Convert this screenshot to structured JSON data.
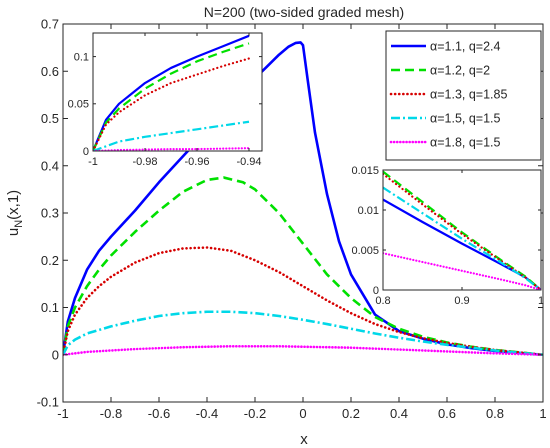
{
  "chart_data": {
    "main": {
      "type": "line",
      "title": "N=200 (two-sided graded mesh)",
      "xlabel": "x",
      "ylabel_main": "u",
      "ylabel_sub": "N",
      "ylabel_tail": "(x,1)",
      "xlim": [
        -1,
        1
      ],
      "ylim": [
        -0.1,
        0.7
      ],
      "xticks": [
        -1,
        -0.8,
        -0.6,
        -0.4,
        -0.2,
        0,
        0.2,
        0.4,
        0.6,
        0.8,
        1
      ],
      "xtick_labels": [
        "-1",
        "-0.8",
        "-0.6",
        "-0.4",
        "-0.2",
        "0",
        "0.2",
        "0.4",
        "0.6",
        "0.8",
        "1"
      ],
      "yticks": [
        -0.1,
        0,
        0.1,
        0.2,
        0.3,
        0.4,
        0.5,
        0.6,
        0.7
      ],
      "ytick_labels": [
        "-0.1",
        "0",
        "0.1",
        "0.2",
        "0.3",
        "0.4",
        "0.5",
        "0.6",
        "0.7"
      ],
      "series": [
        {
          "name": "α=1.1, q=2.4",
          "color": "#0000ff",
          "style": "solid",
          "x": [
            -1,
            -0.98,
            -0.95,
            -0.9,
            -0.85,
            -0.8,
            -0.7,
            -0.6,
            -0.5,
            -0.4,
            -0.3,
            -0.2,
            -0.15,
            -0.1,
            -0.06,
            -0.03,
            -0.01,
            0.0,
            0.02,
            0.05,
            0.1,
            0.15,
            0.2,
            0.3,
            0.4,
            0.5,
            0.6,
            0.7,
            0.8,
            0.9,
            1.0
          ],
          "y": [
            0,
            0.07,
            0.12,
            0.18,
            0.22,
            0.25,
            0.305,
            0.365,
            0.42,
            0.475,
            0.53,
            0.585,
            0.61,
            0.635,
            0.652,
            0.66,
            0.661,
            0.655,
            0.58,
            0.47,
            0.34,
            0.24,
            0.17,
            0.085,
            0.05,
            0.034,
            0.022,
            0.014,
            0.008,
            0.004,
            0
          ]
        },
        {
          "name": "α=1.2, q=2",
          "color": "#00e000",
          "style": "dashed",
          "x": [
            -1,
            -0.98,
            -0.95,
            -0.9,
            -0.85,
            -0.8,
            -0.7,
            -0.6,
            -0.5,
            -0.4,
            -0.33,
            -0.25,
            -0.2,
            -0.1,
            0.0,
            0.1,
            0.2,
            0.3,
            0.4,
            0.5,
            0.6,
            0.7,
            0.8,
            0.9,
            1.0
          ],
          "y": [
            0,
            0.06,
            0.1,
            0.145,
            0.18,
            0.21,
            0.26,
            0.305,
            0.345,
            0.37,
            0.375,
            0.365,
            0.35,
            0.3,
            0.235,
            0.17,
            0.12,
            0.08,
            0.055,
            0.038,
            0.026,
            0.017,
            0.01,
            0.005,
            0
          ]
        },
        {
          "name": "α=1.3, q=1.85",
          "color": "#d60000",
          "style": "dotted",
          "x": [
            -1,
            -0.98,
            -0.95,
            -0.9,
            -0.85,
            -0.8,
            -0.7,
            -0.6,
            -0.5,
            -0.4,
            -0.3,
            -0.2,
            -0.1,
            0.0,
            0.1,
            0.2,
            0.3,
            0.4,
            0.5,
            0.6,
            0.7,
            0.8,
            0.9,
            1.0
          ],
          "y": [
            0,
            0.05,
            0.085,
            0.12,
            0.145,
            0.165,
            0.195,
            0.215,
            0.225,
            0.227,
            0.22,
            0.2,
            0.175,
            0.145,
            0.115,
            0.088,
            0.065,
            0.048,
            0.035,
            0.025,
            0.017,
            0.01,
            0.005,
            0
          ]
        },
        {
          "name": "α=1.5, q=1.5",
          "color": "#00d8e8",
          "style": "dashdot",
          "x": [
            -1,
            -0.98,
            -0.95,
            -0.9,
            -0.8,
            -0.7,
            -0.6,
            -0.5,
            -0.4,
            -0.3,
            -0.2,
            -0.1,
            0.0,
            0.1,
            0.2,
            0.3,
            0.4,
            0.5,
            0.6,
            0.7,
            0.8,
            0.9,
            1.0
          ],
          "y": [
            0,
            0.02,
            0.032,
            0.045,
            0.06,
            0.072,
            0.082,
            0.088,
            0.091,
            0.091,
            0.088,
            0.082,
            0.074,
            0.065,
            0.055,
            0.045,
            0.036,
            0.028,
            0.021,
            0.015,
            0.009,
            0.004,
            0
          ]
        },
        {
          "name": "α=1.8, q=1.5",
          "color": "#ff00ff",
          "style": "points",
          "x": [
            -1,
            -0.9,
            -0.8,
            -0.7,
            -0.6,
            -0.5,
            -0.4,
            -0.3,
            -0.2,
            -0.1,
            0.0,
            0.1,
            0.2,
            0.3,
            0.4,
            0.5,
            0.6,
            0.7,
            0.8,
            0.9,
            1.0
          ],
          "y": [
            0,
            0.006,
            0.009,
            0.012,
            0.014,
            0.016,
            0.017,
            0.018,
            0.018,
            0.018,
            0.017,
            0.016,
            0.015,
            0.013,
            0.011,
            0.009,
            0.007,
            0.005,
            0.003,
            0.0015,
            0
          ]
        }
      ],
      "legend_position": "top-right"
    },
    "inset_left": {
      "type": "line",
      "xlim": [
        -1,
        -0.935
      ],
      "ylim": [
        0,
        0.125
      ],
      "xticks": [
        -1,
        -0.98,
        -0.96,
        -0.94
      ],
      "xtick_labels": [
        "-1",
        "-0.98",
        "-0.96",
        "-0.94"
      ],
      "yticks": [
        0,
        0.05,
        0.1
      ],
      "ytick_labels": [
        "0",
        "0.05",
        "0.1"
      ],
      "series": [
        {
          "color": "#0000ff",
          "style": "solid",
          "x": [
            -1,
            -0.995,
            -0.99,
            -0.98,
            -0.97,
            -0.96,
            -0.95,
            -0.94
          ],
          "y": [
            0,
            0.033,
            0.05,
            0.072,
            0.088,
            0.1,
            0.111,
            0.122
          ]
        },
        {
          "color": "#00e000",
          "style": "dashed",
          "x": [
            -1,
            -0.995,
            -0.99,
            -0.98,
            -0.97,
            -0.96,
            -0.95,
            -0.94
          ],
          "y": [
            0,
            0.03,
            0.045,
            0.066,
            0.082,
            0.095,
            0.105,
            0.114
          ]
        },
        {
          "color": "#d60000",
          "style": "dotted",
          "x": [
            -1,
            -0.995,
            -0.99,
            -0.98,
            -0.97,
            -0.96,
            -0.95,
            -0.94
          ],
          "y": [
            0,
            0.028,
            0.041,
            0.059,
            0.072,
            0.081,
            0.09,
            0.098
          ]
        },
        {
          "color": "#00d8e8",
          "style": "dashdot",
          "x": [
            -1,
            -0.99,
            -0.98,
            -0.97,
            -0.96,
            -0.95,
            -0.94
          ],
          "y": [
            0,
            0.01,
            0.015,
            0.019,
            0.023,
            0.027,
            0.031
          ]
        },
        {
          "color": "#ff00ff",
          "style": "points",
          "x": [
            -1,
            -0.99,
            -0.98,
            -0.97,
            -0.96,
            -0.95,
            -0.94
          ],
          "y": [
            0,
            0.001,
            0.0015,
            0.002,
            0.002,
            0.0025,
            0.003
          ]
        }
      ]
    },
    "inset_right": {
      "type": "line",
      "xlim": [
        0.8,
        1
      ],
      "ylim": [
        0,
        0.015
      ],
      "xticks": [
        0.8,
        0.9,
        1
      ],
      "xtick_labels": [
        "0.8",
        "0.9",
        "1"
      ],
      "yticks": [
        0,
        0.005,
        0.01,
        0.015
      ],
      "ytick_labels": [
        "0",
        "0.005",
        "0.01",
        "0.015"
      ],
      "series": [
        {
          "color": "#0000ff",
          "style": "solid",
          "x": [
            0.8,
            0.85,
            0.9,
            0.95,
            0.98,
            1.0
          ],
          "y": [
            0.0113,
            0.0085,
            0.0058,
            0.0032,
            0.0016,
            0
          ]
        },
        {
          "color": "#00e000",
          "style": "dashed",
          "x": [
            0.8,
            0.85,
            0.9,
            0.95,
            0.98,
            1.0
          ],
          "y": [
            0.0148,
            0.011,
            0.0072,
            0.0037,
            0.0017,
            0
          ]
        },
        {
          "color": "#d60000",
          "style": "dotted",
          "x": [
            0.8,
            0.85,
            0.9,
            0.95,
            0.98,
            1.0
          ],
          "y": [
            0.0145,
            0.0107,
            0.007,
            0.0036,
            0.0016,
            0
          ]
        },
        {
          "color": "#00d8e8",
          "style": "dashdot",
          "x": [
            0.8,
            0.85,
            0.9,
            0.95,
            0.98,
            1.0
          ],
          "y": [
            0.0128,
            0.0096,
            0.0064,
            0.0034,
            0.0015,
            0
          ]
        },
        {
          "color": "#ff00ff",
          "style": "points",
          "x": [
            0.8,
            0.85,
            0.9,
            0.95,
            0.98,
            1.0
          ],
          "y": [
            0.0046,
            0.0035,
            0.0024,
            0.0013,
            0.0006,
            0
          ]
        }
      ]
    }
  }
}
